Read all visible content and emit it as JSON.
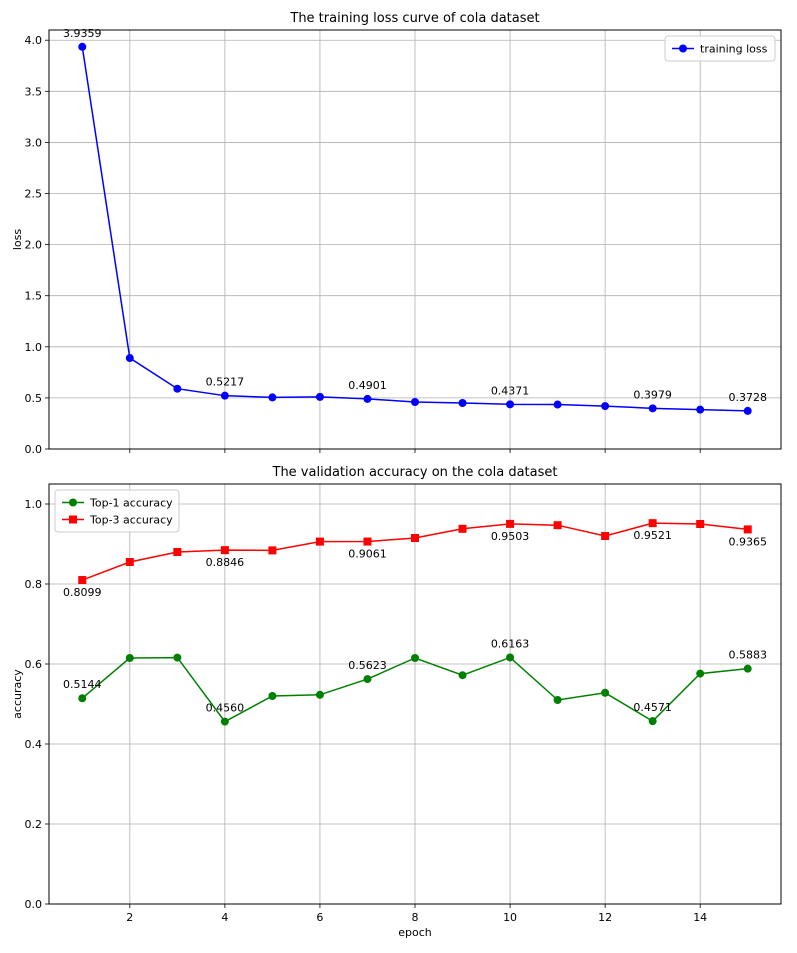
{
  "chart_data": [
    {
      "type": "line",
      "title": "The training loss curve of cola dataset",
      "xlabel": "",
      "ylabel": "loss",
      "xlim": [
        0.3,
        15.7
      ],
      "ylim": [
        0.0,
        4.1
      ],
      "xticks": [
        2,
        4,
        6,
        8,
        10,
        12,
        14
      ],
      "yticks": [
        0.0,
        0.5,
        1.0,
        1.5,
        2.0,
        2.5,
        3.0,
        3.5,
        4.0
      ],
      "yticklabels": [
        "0.0",
        "0.5",
        "1.0",
        "1.5",
        "2.0",
        "2.5",
        "3.0",
        "3.5",
        "4.0"
      ],
      "grid": true,
      "legend": "top-right",
      "x": [
        1,
        2,
        3,
        4,
        5,
        6,
        7,
        8,
        9,
        10,
        11,
        12,
        13,
        14,
        15
      ],
      "series": [
        {
          "name": "training loss",
          "color": "#0000ff",
          "marker": "circle",
          "values": [
            3.9359,
            0.89,
            0.59,
            0.5217,
            0.505,
            0.51,
            0.4901,
            0.46,
            0.45,
            0.4371,
            0.435,
            0.42,
            0.3979,
            0.385,
            0.3728
          ],
          "annotations": [
            {
              "x": 1,
              "y": 3.9359,
              "text": "3.9359",
              "pos": "above"
            },
            {
              "x": 4,
              "y": 0.5217,
              "text": "0.5217",
              "pos": "above"
            },
            {
              "x": 7,
              "y": 0.4901,
              "text": "0.4901",
              "pos": "above"
            },
            {
              "x": 10,
              "y": 0.4371,
              "text": "0.4371",
              "pos": "above"
            },
            {
              "x": 13,
              "y": 0.3979,
              "text": "0.3979",
              "pos": "above"
            },
            {
              "x": 15,
              "y": 0.3728,
              "text": "0.3728",
              "pos": "above"
            }
          ]
        }
      ]
    },
    {
      "type": "line",
      "title": "The validation accuracy on the cola dataset",
      "xlabel": "epoch",
      "ylabel": "accuracy",
      "xlim": [
        0.3,
        15.7
      ],
      "ylim": [
        0.0,
        1.05
      ],
      "xticks": [
        2,
        4,
        6,
        8,
        10,
        12,
        14
      ],
      "yticks": [
        0.0,
        0.2,
        0.4,
        0.6,
        0.8,
        1.0
      ],
      "yticklabels": [
        "0.0",
        "0.2",
        "0.4",
        "0.6",
        "0.8",
        "1.0"
      ],
      "grid": true,
      "legend": "top-left",
      "x": [
        1,
        2,
        3,
        4,
        5,
        6,
        7,
        8,
        9,
        10,
        11,
        12,
        13,
        14,
        15
      ],
      "series": [
        {
          "name": "Top-1 accuracy",
          "color": "#008000",
          "marker": "circle",
          "values": [
            0.5144,
            0.615,
            0.616,
            0.456,
            0.52,
            0.523,
            0.5623,
            0.615,
            0.572,
            0.6163,
            0.51,
            0.528,
            0.4571,
            0.576,
            0.5883
          ],
          "annotations": [
            {
              "x": 1,
              "y": 0.5144,
              "text": "0.5144",
              "pos": "above"
            },
            {
              "x": 4,
              "y": 0.456,
              "text": "0.4560",
              "pos": "above"
            },
            {
              "x": 7,
              "y": 0.5623,
              "text": "0.5623",
              "pos": "above"
            },
            {
              "x": 10,
              "y": 0.6163,
              "text": "0.6163",
              "pos": "above"
            },
            {
              "x": 13,
              "y": 0.4571,
              "text": "0.4571",
              "pos": "above"
            },
            {
              "x": 15,
              "y": 0.5883,
              "text": "0.5883",
              "pos": "above"
            }
          ]
        },
        {
          "name": "Top-3 accuracy",
          "color": "#ff0000",
          "marker": "square",
          "values": [
            0.8099,
            0.855,
            0.88,
            0.8846,
            0.884,
            0.906,
            0.9061,
            0.915,
            0.938,
            0.9503,
            0.947,
            0.92,
            0.9521,
            0.95,
            0.9365
          ],
          "annotations": [
            {
              "x": 1,
              "y": 0.8099,
              "text": "0.8099",
              "pos": "below"
            },
            {
              "x": 4,
              "y": 0.8846,
              "text": "0.8846",
              "pos": "below"
            },
            {
              "x": 7,
              "y": 0.9061,
              "text": "0.9061",
              "pos": "below"
            },
            {
              "x": 10,
              "y": 0.9503,
              "text": "0.9503",
              "pos": "below"
            },
            {
              "x": 13,
              "y": 0.9521,
              "text": "0.9521",
              "pos": "below"
            },
            {
              "x": 15,
              "y": 0.9365,
              "text": "0.9365",
              "pos": "below"
            }
          ]
        }
      ]
    }
  ]
}
